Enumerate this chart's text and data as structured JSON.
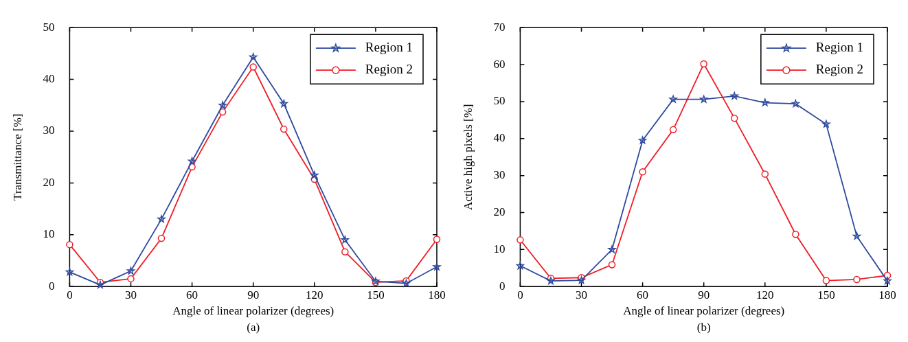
{
  "chart_data": [
    {
      "type": "line",
      "xlabel": "Angle of linear polarizer (degrees)",
      "ylabel": "Transmittance [%]",
      "x": [
        0,
        15,
        30,
        45,
        60,
        75,
        90,
        105,
        120,
        135,
        150,
        165,
        180
      ],
      "xlim": [
        0,
        180
      ],
      "xticks": [
        0,
        30,
        60,
        90,
        120,
        150,
        180
      ],
      "ylim": [
        0,
        50
      ],
      "yticks": [
        0,
        10,
        20,
        30,
        40,
        50
      ],
      "legend": "top right",
      "annotations": [
        "(a)"
      ],
      "series": [
        {
          "name": "Region 1",
          "color": "#2e4a9e",
          "marker": "star",
          "values": [
            2.8,
            0.3,
            3.0,
            13.0,
            24.2,
            35.0,
            44.3,
            35.3,
            21.5,
            9.0,
            1.0,
            0.6,
            3.8
          ]
        },
        {
          "name": "Region 2",
          "color": "#ee1c25",
          "marker": "circle",
          "values": [
            8.1,
            0.8,
            1.5,
            9.3,
            23.1,
            33.7,
            42.4,
            30.4,
            20.7,
            6.7,
            0.8,
            1.1,
            9.1
          ]
        }
      ]
    },
    {
      "type": "line",
      "xlabel": "Angle of linear polarizer (degrees)",
      "ylabel": "Active high pixels [%]",
      "x": [
        0,
        15,
        30,
        45,
        60,
        75,
        90,
        105,
        120,
        135,
        150,
        165,
        180
      ],
      "xlim": [
        0,
        180
      ],
      "xticks": [
        0,
        30,
        60,
        90,
        120,
        150,
        180
      ],
      "ylim": [
        0,
        70
      ],
      "yticks": [
        0,
        10,
        20,
        30,
        40,
        50,
        60,
        70
      ],
      "legend": "top right",
      "annotations": [
        "(b)"
      ],
      "series": [
        {
          "name": "Region 1",
          "color": "#2e4a9e",
          "marker": "star",
          "values": [
            5.6,
            1.5,
            1.7,
            10.0,
            39.5,
            50.6,
            50.6,
            51.5,
            49.7,
            49.4,
            43.9,
            13.6,
            1.5
          ]
        },
        {
          "name": "Region 2",
          "color": "#ee1c25",
          "marker": "circle",
          "values": [
            12.6,
            2.2,
            2.4,
            5.9,
            31.0,
            42.4,
            60.2,
            45.5,
            30.4,
            14.1,
            1.6,
            1.9,
            3.0
          ]
        }
      ]
    }
  ]
}
